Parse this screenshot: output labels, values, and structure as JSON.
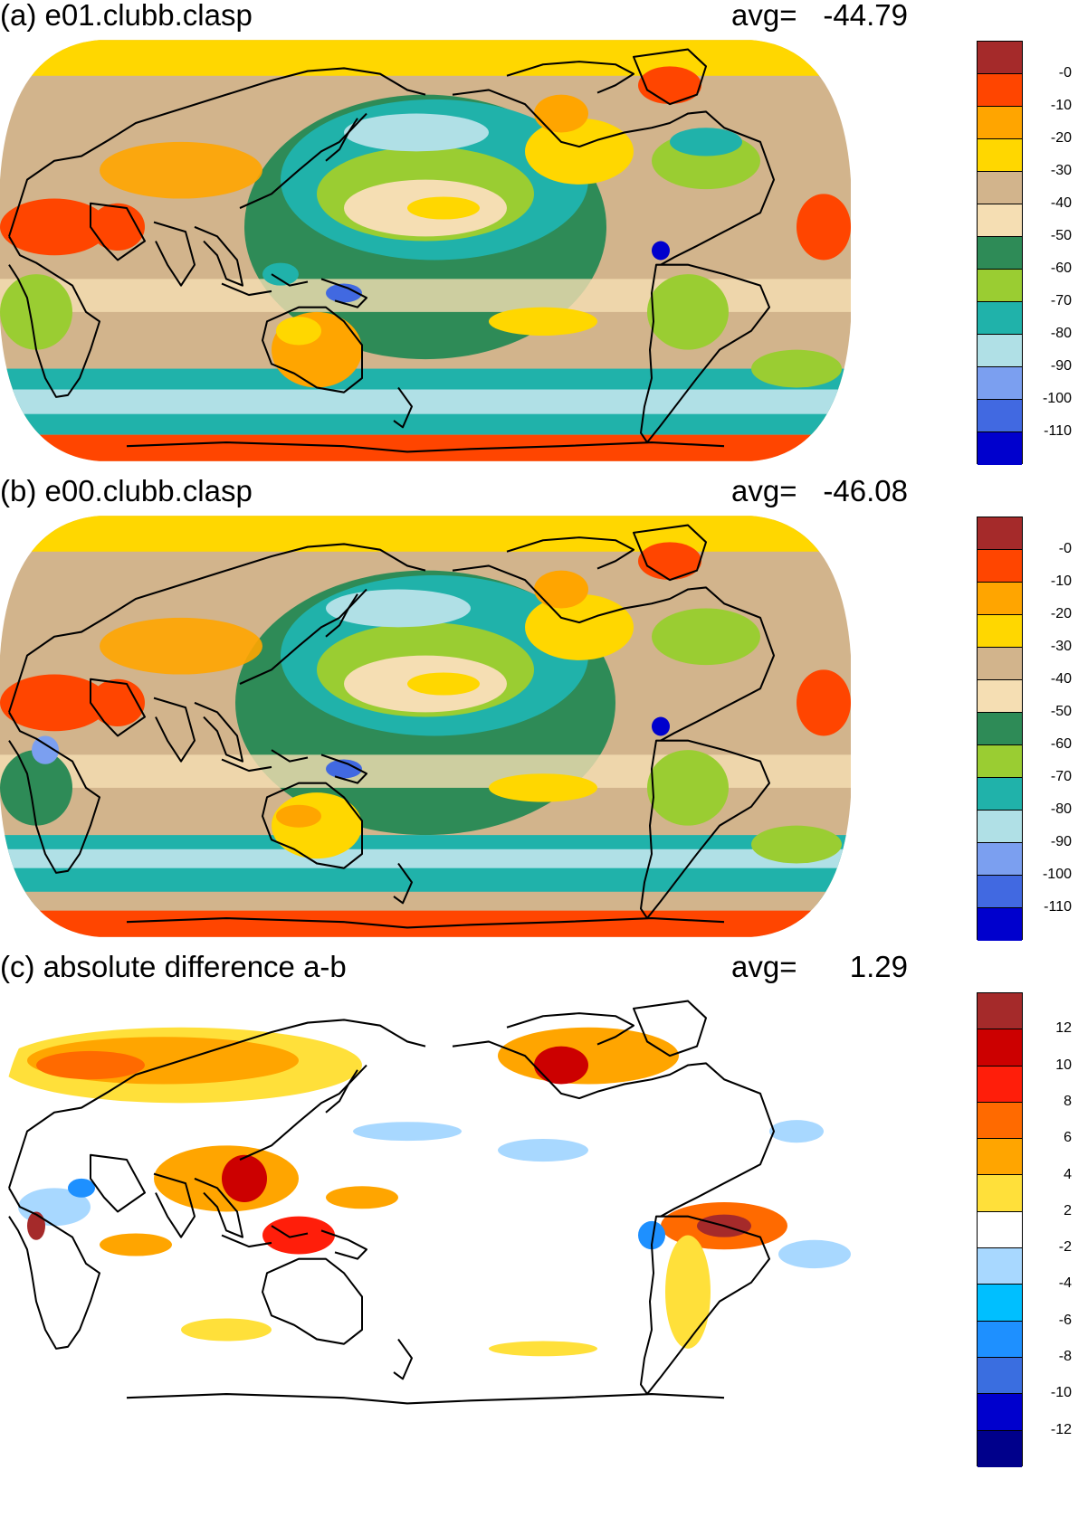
{
  "panels": [
    {
      "title": "(a) e01.clubb.clasp",
      "avg_label": "avg=",
      "avg_value": "-44.79",
      "colorbar": {
        "colors": [
          "#a52a2a",
          "#ff4500",
          "#ffa500",
          "#ffd700",
          "#d2b48c",
          "#f5deb3",
          "#2e8b57",
          "#9acd32",
          "#20b2aa",
          "#b0e0e6",
          "#7b9ff0",
          "#4169e1",
          "#0000cd"
        ],
        "labels": [
          "-0",
          "-10",
          "-20",
          "-30",
          "-40",
          "-50",
          "-60",
          "-70",
          "-80",
          "-90",
          "-100",
          "-110"
        ]
      }
    },
    {
      "title": "(b) e00.clubb.clasp",
      "avg_label": "avg=",
      "avg_value": "-46.08",
      "colorbar": {
        "colors": [
          "#a52a2a",
          "#ff4500",
          "#ffa500",
          "#ffd700",
          "#d2b48c",
          "#f5deb3",
          "#2e8b57",
          "#9acd32",
          "#20b2aa",
          "#b0e0e6",
          "#7b9ff0",
          "#4169e1",
          "#0000cd"
        ],
        "labels": [
          "-0",
          "-10",
          "-20",
          "-30",
          "-40",
          "-50",
          "-60",
          "-70",
          "-80",
          "-90",
          "-100",
          "-110"
        ]
      }
    },
    {
      "title": "(c) absolute difference a-b",
      "avg_label": "avg=",
      "avg_value": "1.29",
      "colorbar": {
        "colors": [
          "#a52a2a",
          "#cc0000",
          "#ff1e0a",
          "#ff6a00",
          "#ffa500",
          "#ffe03a",
          "#ffffff",
          "#a8d8ff",
          "#00bfff",
          "#1e90ff",
          "#3a6ee0",
          "#0000cd",
          "#00008b"
        ],
        "labels": [
          "12",
          "10",
          "8",
          "6",
          "4",
          "2",
          "-2",
          "-4",
          "-6",
          "-8",
          "-10",
          "-12"
        ]
      }
    }
  ]
}
